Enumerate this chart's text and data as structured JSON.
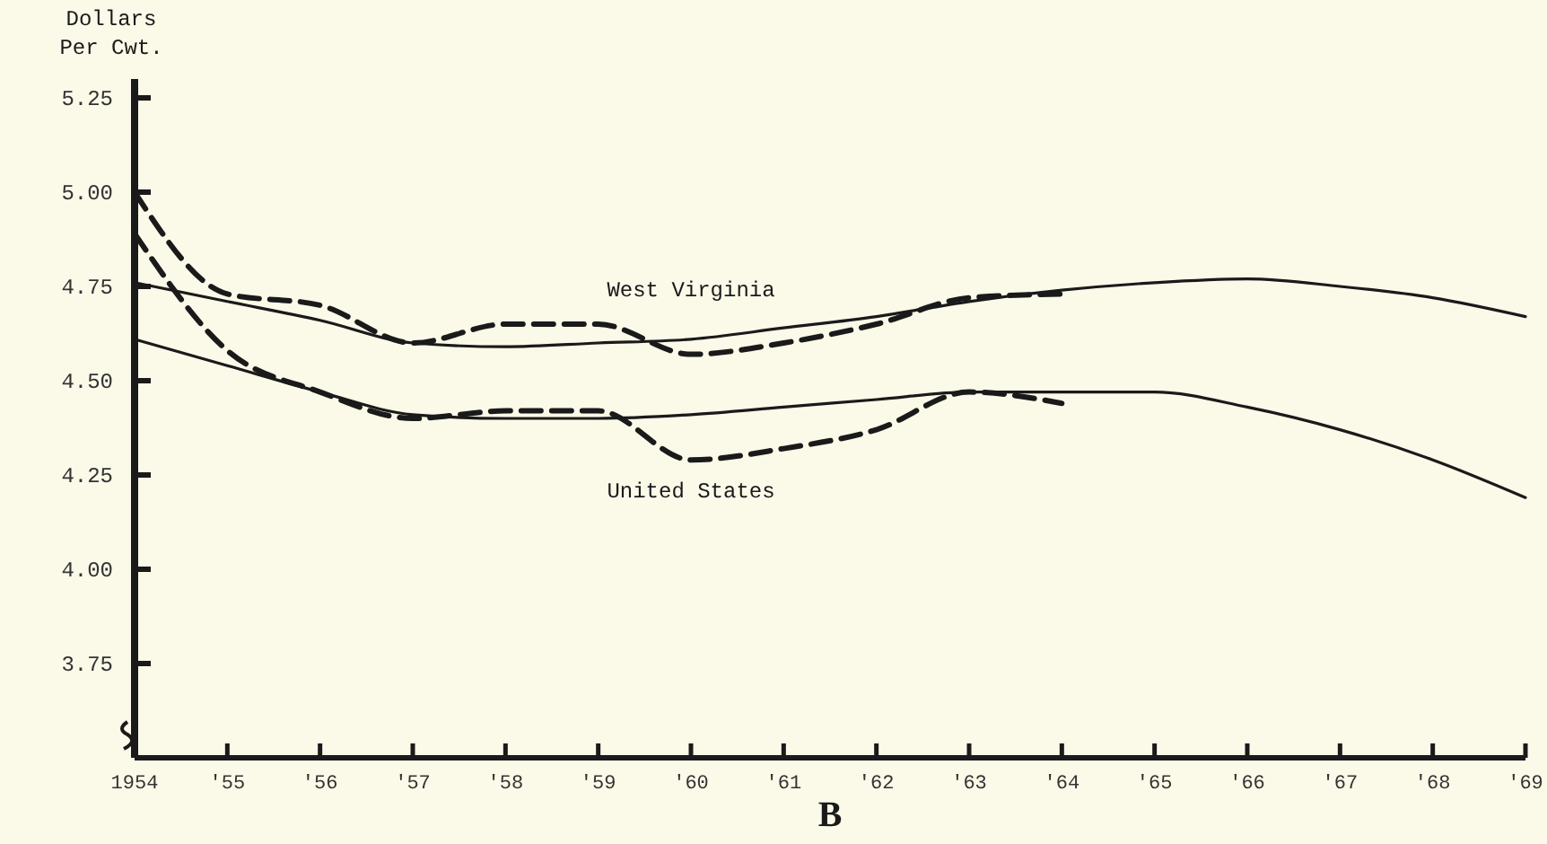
{
  "chart_data": {
    "type": "line",
    "ylabel": "Dollars\nPer Cwt.",
    "x": [
      1954,
      1955,
      1956,
      1957,
      1958,
      1959,
      1960,
      1961,
      1962,
      1963,
      1964,
      1965,
      1966,
      1967,
      1968,
      1969
    ],
    "xlim": [
      1954,
      1969
    ],
    "xticks": [
      {
        "value": 1954,
        "label": "1954"
      },
      {
        "value": 1955,
        "label": "'55"
      },
      {
        "value": 1956,
        "label": "'56"
      },
      {
        "value": 1957,
        "label": "'57"
      },
      {
        "value": 1958,
        "label": "'58"
      },
      {
        "value": 1959,
        "label": "'59"
      },
      {
        "value": 1960,
        "label": "'60"
      },
      {
        "value": 1961,
        "label": "'61"
      },
      {
        "value": 1962,
        "label": "'62"
      },
      {
        "value": 1963,
        "label": "'63"
      },
      {
        "value": 1964,
        "label": "'64"
      },
      {
        "value": 1965,
        "label": "'65"
      },
      {
        "value": 1966,
        "label": "'66"
      },
      {
        "value": 1967,
        "label": "'67"
      },
      {
        "value": 1968,
        "label": "'68"
      },
      {
        "value": 1969,
        "label": "'69"
      }
    ],
    "ylim": [
      3.5,
      5.3
    ],
    "yticks": [
      3.75,
      {
        "value": 4,
        "label": "4.00"
      },
      4.25,
      {
        "value": 4.5,
        "label": "4.50"
      },
      4.75,
      {
        "value": 5,
        "label": "5.00"
      },
      5.25
    ],
    "series": [
      {
        "color": "#1a1a1a",
        "line_style": "dashed",
        "values": [
          5.0,
          4.73,
          4.7,
          4.6,
          4.65,
          4.65,
          4.57,
          4.6,
          4.65,
          4.72,
          4.73,
          null,
          null,
          null,
          null,
          null
        ]
      },
      {
        "name": "West Virginia",
        "color": "#1a1a1a",
        "line_style": "solid",
        "values": [
          4.76,
          4.71,
          4.66,
          4.6,
          4.59,
          4.6,
          4.61,
          4.64,
          4.67,
          4.71,
          4.74,
          4.76,
          4.77,
          4.75,
          4.72,
          4.67
        ]
      },
      {
        "color": "#1a1a1a",
        "line_style": "dashed",
        "values": [
          4.89,
          4.58,
          4.47,
          4.4,
          4.42,
          4.42,
          4.29,
          4.32,
          4.37,
          4.47,
          4.44,
          null,
          null,
          null,
          null,
          null
        ]
      },
      {
        "name": "United States",
        "color": "#1a1a1a",
        "line_style": "solid",
        "values": [
          4.61,
          4.54,
          4.47,
          4.41,
          4.4,
          4.4,
          4.41,
          4.43,
          4.45,
          4.47,
          4.47,
          4.47,
          4.43,
          4.37,
          4.29,
          4.19
        ]
      }
    ],
    "annotations": [
      "B"
    ]
  }
}
